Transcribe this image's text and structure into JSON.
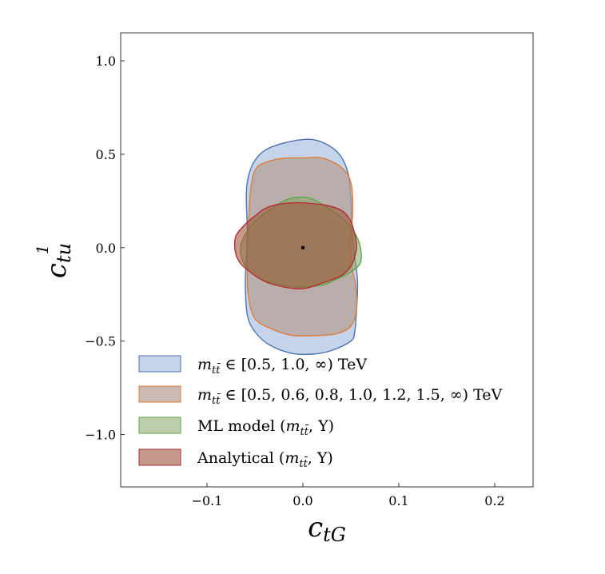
{
  "chart_data": {
    "type": "contour",
    "xlabel": "c",
    "xlabel_sub": "tG",
    "ylabel": "c",
    "ylabel_sub": "tu",
    "ylabel_sup": "1",
    "xlim": [
      -0.19,
      0.24
    ],
    "ylim": [
      -1.28,
      1.15
    ],
    "x_ticks": [
      -0.1,
      0.0,
      0.1,
      0.2
    ],
    "x_tick_labels": [
      "−0.1",
      "0.0",
      "0.1",
      "0.2"
    ],
    "y_ticks": [
      -1.0,
      -0.5,
      0.0,
      0.5,
      1.0
    ],
    "y_tick_labels": [
      "−1.0",
      "−0.5",
      "0.0",
      "0.5",
      "1.0"
    ],
    "grid": false,
    "legend_position": "lower-left",
    "sm_point": {
      "x": 0.0,
      "y": 0.0
    },
    "series": [
      {
        "name": "m_tt̄ ∈ [0.5, 1.0, ∞) TeV",
        "legend_parts": [
          "m",
          "tt̄",
          " ∈ [0.5, 1.0, ∞) TeV"
        ],
        "edge": "#4a74b3",
        "fill": "#c5d4ea",
        "opacity": 1.0,
        "points": [
          [
            0.005,
            0.58
          ],
          [
            0.022,
            0.56
          ],
          [
            0.038,
            0.5
          ],
          [
            0.047,
            0.4
          ],
          [
            0.05,
            0.25
          ],
          [
            0.051,
            0.1
          ],
          [
            0.054,
            -0.05
          ],
          [
            0.057,
            -0.18
          ],
          [
            0.056,
            -0.33
          ],
          [
            0.054,
            -0.45
          ],
          [
            0.05,
            -0.5
          ],
          [
            0.03,
            -0.55
          ],
          [
            0.01,
            -0.57
          ],
          [
            -0.012,
            -0.565
          ],
          [
            -0.035,
            -0.52
          ],
          [
            -0.05,
            -0.45
          ],
          [
            -0.058,
            -0.36
          ],
          [
            -0.06,
            -0.2
          ],
          [
            -0.059,
            -0.05
          ],
          [
            -0.058,
            0.1
          ],
          [
            -0.059,
            0.25
          ],
          [
            -0.058,
            0.35
          ],
          [
            -0.052,
            0.45
          ],
          [
            -0.04,
            0.52
          ],
          [
            -0.02,
            0.56
          ]
        ]
      },
      {
        "name": "m_tt̄ ∈ [0.5, 0.6, 0.8, 1.0, 1.2, 1.5, ∞) TeV",
        "legend_parts": [
          "m",
          "tt̄",
          " ∈ [0.5, 0.6, 0.8, 1.0, 1.2, 1.5, ∞) TeV"
        ],
        "edge": "#e07b39",
        "fill": "#b5a095",
        "opacity": 0.72,
        "points": [
          [
            0.0,
            0.48
          ],
          [
            0.02,
            0.48
          ],
          [
            0.04,
            0.43
          ],
          [
            0.05,
            0.35
          ],
          [
            0.052,
            0.2
          ],
          [
            0.05,
            0.05
          ],
          [
            0.051,
            -0.1
          ],
          [
            0.055,
            -0.2
          ],
          [
            0.056,
            -0.33
          ],
          [
            0.05,
            -0.42
          ],
          [
            0.035,
            -0.46
          ],
          [
            0.015,
            -0.47
          ],
          [
            -0.01,
            -0.47
          ],
          [
            -0.03,
            -0.44
          ],
          [
            -0.05,
            -0.38
          ],
          [
            -0.057,
            -0.25
          ],
          [
            -0.058,
            -0.1
          ],
          [
            -0.057,
            0.05
          ],
          [
            -0.056,
            0.2
          ],
          [
            -0.054,
            0.33
          ],
          [
            -0.048,
            0.43
          ],
          [
            -0.03,
            0.47
          ],
          [
            -0.015,
            0.48
          ]
        ]
      },
      {
        "name": "ML model (m_tt̄, Y)",
        "legend_parts": [
          "ML model (",
          "m",
          "tt̄",
          ", Y)"
        ],
        "edge": "#5aa64a",
        "fill": "#86a565",
        "opacity": 0.55,
        "points": [
          [
            -0.005,
            0.27
          ],
          [
            0.01,
            0.26
          ],
          [
            0.03,
            0.2
          ],
          [
            0.045,
            0.14
          ],
          [
            0.055,
            0.07
          ],
          [
            0.06,
            0.0
          ],
          [
            0.06,
            -0.08
          ],
          [
            0.05,
            -0.13
          ],
          [
            0.035,
            -0.17
          ],
          [
            0.02,
            -0.2
          ],
          [
            -0.005,
            -0.21
          ],
          [
            -0.03,
            -0.19
          ],
          [
            -0.05,
            -0.15
          ],
          [
            -0.062,
            -0.08
          ],
          [
            -0.065,
            0.0
          ],
          [
            -0.06,
            0.07
          ],
          [
            -0.05,
            0.14
          ],
          [
            -0.035,
            0.2
          ],
          [
            -0.02,
            0.25
          ]
        ]
      },
      {
        "name": "Analytical (m_tt̄, Y)",
        "legend_parts": [
          "Analytical (",
          "m",
          "tt̄",
          ", Y)"
        ],
        "edge": "#b52f33",
        "fill": "#a0573c",
        "opacity": 0.6,
        "points": [
          [
            -0.01,
            0.24
          ],
          [
            0.02,
            0.23
          ],
          [
            0.04,
            0.2
          ],
          [
            0.05,
            0.14
          ],
          [
            0.055,
            0.05
          ],
          [
            0.056,
            0.0
          ],
          [
            0.054,
            -0.05
          ],
          [
            0.05,
            -0.1
          ],
          [
            0.04,
            -0.15
          ],
          [
            0.02,
            -0.19
          ],
          [
            0.0,
            -0.22
          ],
          [
            -0.02,
            -0.21
          ],
          [
            -0.04,
            -0.18
          ],
          [
            -0.06,
            -0.11
          ],
          [
            -0.068,
            -0.06
          ],
          [
            -0.071,
            0.0
          ],
          [
            -0.07,
            0.06
          ],
          [
            -0.063,
            0.11
          ],
          [
            -0.05,
            0.17
          ],
          [
            -0.035,
            0.22
          ]
        ]
      }
    ]
  }
}
